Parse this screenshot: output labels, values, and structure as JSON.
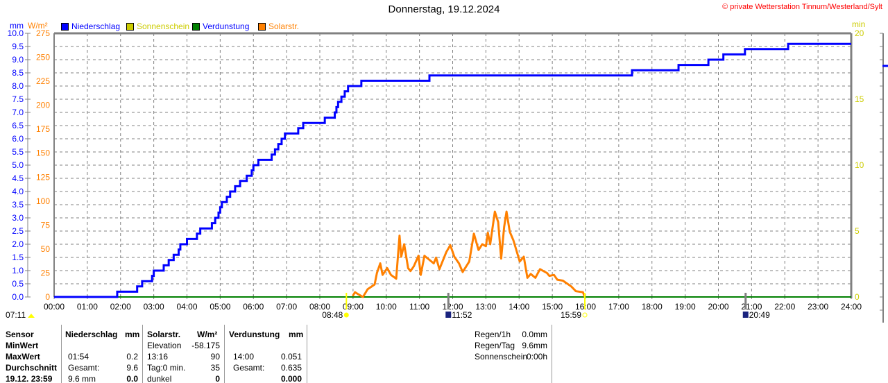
{
  "header": {
    "title": "Donnerstag, 19.12.2024",
    "copyright": "© private Wetterstation Tinnum/Westerland/Sylt"
  },
  "legend": [
    {
      "label": "Niederschlag",
      "color": "#0000ff",
      "text_color": "#0000ff"
    },
    {
      "label": "Sonnenschein",
      "color": "#cccc00",
      "text_color": "#cccc00"
    },
    {
      "label": "Verdunstung",
      "color": "#008000",
      "text_color": "#0000ff"
    },
    {
      "label": "Solarstr.",
      "color": "#ff8000",
      "text_color": "#ff8000"
    }
  ],
  "chart_data": {
    "type": "line",
    "title": "Donnerstag, 19.12.2024",
    "x_range_hours": [
      0,
      24
    ],
    "x_ticks": [
      "00:00",
      "01:00",
      "02:00",
      "03:00",
      "04:00",
      "05:00",
      "06:00",
      "07:00",
      "08:00",
      "09:00",
      "10:00",
      "11:00",
      "12:00",
      "13:00",
      "14:00",
      "15:00",
      "16:00",
      "17:00",
      "18:00",
      "19:00",
      "20:00",
      "21:00",
      "22:00",
      "23:00",
      "24:00"
    ],
    "y_left_mm": {
      "label": "mm",
      "range": [
        0,
        10
      ],
      "ticks": [
        "0.0",
        "0.5",
        "1.0",
        "1.5",
        "2.0",
        "2.5",
        "3.0",
        "3.5",
        "4.0",
        "4.5",
        "5.0",
        "5.5",
        "6.0",
        "6.5",
        "7.0",
        "7.5",
        "8.0",
        "8.5",
        "9.0",
        "9.5",
        "10.0"
      ]
    },
    "y_left_wm2": {
      "label": "W/m²",
      "range": [
        0,
        275
      ],
      "ticks": [
        "0",
        "25",
        "50",
        "75",
        "100",
        "125",
        "150",
        "175",
        "200",
        "225",
        "250",
        "275"
      ]
    },
    "y_right_min": {
      "label": "min",
      "range": [
        0,
        20
      ],
      "ticks": [
        "0",
        "5",
        "10",
        "15",
        "20"
      ]
    },
    "grid": true,
    "series": [
      {
        "name": "Niederschlag",
        "color": "#0000ff",
        "unit": "mm",
        "step": true,
        "points": [
          [
            0,
            0
          ],
          [
            1.9,
            0.2
          ],
          [
            2.5,
            0.4
          ],
          [
            2.65,
            0.6
          ],
          [
            2.95,
            0.8
          ],
          [
            3.0,
            1.0
          ],
          [
            3.3,
            1.2
          ],
          [
            3.45,
            1.4
          ],
          [
            3.6,
            1.6
          ],
          [
            3.75,
            1.8
          ],
          [
            3.8,
            2.0
          ],
          [
            4.0,
            2.2
          ],
          [
            4.3,
            2.4
          ],
          [
            4.4,
            2.6
          ],
          [
            4.75,
            2.8
          ],
          [
            4.85,
            3.0
          ],
          [
            4.95,
            3.2
          ],
          [
            5.0,
            3.4
          ],
          [
            5.05,
            3.6
          ],
          [
            5.2,
            3.8
          ],
          [
            5.3,
            4.0
          ],
          [
            5.45,
            4.2
          ],
          [
            5.6,
            4.4
          ],
          [
            5.8,
            4.6
          ],
          [
            5.95,
            4.8
          ],
          [
            6.0,
            5.0
          ],
          [
            6.15,
            5.2
          ],
          [
            6.55,
            5.4
          ],
          [
            6.65,
            5.6
          ],
          [
            6.75,
            5.8
          ],
          [
            6.85,
            6.0
          ],
          [
            6.95,
            6.2
          ],
          [
            7.35,
            6.4
          ],
          [
            7.5,
            6.6
          ],
          [
            8.15,
            6.8
          ],
          [
            8.45,
            7.0
          ],
          [
            8.5,
            7.2
          ],
          [
            8.55,
            7.4
          ],
          [
            8.65,
            7.6
          ],
          [
            8.75,
            7.8
          ],
          [
            8.85,
            8.0
          ],
          [
            9.25,
            8.2
          ],
          [
            11.3,
            8.4
          ],
          [
            17.4,
            8.6
          ],
          [
            18.8,
            8.8
          ],
          [
            19.7,
            9.0
          ],
          [
            20.15,
            9.2
          ],
          [
            20.8,
            9.4
          ],
          [
            22.1,
            9.6
          ],
          [
            24,
            9.6
          ]
        ]
      },
      {
        "name": "Solarstr.",
        "color": "#ff8000",
        "unit": "W/m²",
        "points": [
          [
            8.99,
            1
          ],
          [
            9.06,
            5
          ],
          [
            9.15,
            3
          ],
          [
            9.3,
            0
          ],
          [
            9.44,
            8
          ],
          [
            9.65,
            13
          ],
          [
            9.72,
            25
          ],
          [
            9.82,
            35
          ],
          [
            9.89,
            23
          ],
          [
            10.03,
            30
          ],
          [
            10.14,
            23
          ],
          [
            10.3,
            19
          ],
          [
            10.4,
            64
          ],
          [
            10.45,
            42
          ],
          [
            10.54,
            55
          ],
          [
            10.66,
            30
          ],
          [
            10.73,
            27
          ],
          [
            10.83,
            32
          ],
          [
            10.97,
            43
          ],
          [
            11.04,
            23
          ],
          [
            11.15,
            43
          ],
          [
            11.43,
            35
          ],
          [
            11.5,
            41
          ],
          [
            11.6,
            29
          ],
          [
            11.81,
            47
          ],
          [
            11.93,
            54
          ],
          [
            12.05,
            42
          ],
          [
            12.19,
            35
          ],
          [
            12.3,
            26
          ],
          [
            12.5,
            37
          ],
          [
            12.64,
            66
          ],
          [
            12.78,
            49
          ],
          [
            12.89,
            55
          ],
          [
            13.0,
            53
          ],
          [
            13.06,
            67
          ],
          [
            13.13,
            55
          ],
          [
            13.27,
            89
          ],
          [
            13.37,
            78
          ],
          [
            13.46,
            40
          ],
          [
            13.55,
            73
          ],
          [
            13.62,
            89
          ],
          [
            13.72,
            68
          ],
          [
            13.83,
            59
          ],
          [
            14.02,
            37
          ],
          [
            14.14,
            42
          ],
          [
            14.25,
            20
          ],
          [
            14.35,
            24
          ],
          [
            14.49,
            20
          ],
          [
            14.63,
            29
          ],
          [
            14.84,
            25
          ],
          [
            14.91,
            22
          ],
          [
            15.05,
            23
          ],
          [
            15.15,
            18
          ],
          [
            15.32,
            17
          ],
          [
            15.57,
            11
          ],
          [
            15.71,
            6
          ],
          [
            15.92,
            5
          ],
          [
            15.98,
            0
          ]
        ]
      },
      {
        "name": "Verdunstung",
        "color": "#008000",
        "unit": "mm",
        "points": [
          [
            0,
            0
          ],
          [
            24,
            0
          ]
        ]
      }
    ],
    "markers": [
      {
        "label": "07:11",
        "hour": 7.18,
        "type": "sunrise-left"
      },
      {
        "label": "08:48",
        "hour": 8.8,
        "type": "sunrise"
      },
      {
        "label": "11:52",
        "hour": 11.87,
        "type": "moon"
      },
      {
        "label": "15:59",
        "hour": 15.98,
        "type": "sunset"
      },
      {
        "label": "20:49",
        "hour": 20.82,
        "type": "moon"
      }
    ]
  },
  "table": {
    "headers": [
      "Sensor",
      "Niederschlag",
      "mm",
      "Solarstr.",
      "W/m²",
      "Verdunstung",
      "mm"
    ],
    "rows": [
      {
        "label": "MinWert",
        "n_time": "",
        "n_val": "",
        "s_time": "Elevation",
        "s_val": "-58.175",
        "v_time": "",
        "v_val": ""
      },
      {
        "label": "MaxWert",
        "n_time": "01:54",
        "n_val": "0.2",
        "s_time": "13:16",
        "s_val": "90",
        "v_time": "14:00",
        "v_val": "0.051"
      },
      {
        "label": "Durchschnitt",
        "n_time": "Gesamt:",
        "n_val": "9.6",
        "s_time": "Tag:0 min.",
        "s_val": "35",
        "v_time": "Gesamt:",
        "v_val": "0.635"
      },
      {
        "label": "19.12. 23:59",
        "n_time": "9.6 mm",
        "n_val": "0.0",
        "s_time": "dunkel",
        "s_val": "0",
        "v_time": "",
        "v_val": "0.000"
      }
    ]
  },
  "summary": [
    {
      "label": "Regen/1h",
      "value": "0.0mm"
    },
    {
      "label": "Regen/Tag",
      "value": "9.6mm"
    },
    {
      "label": "Sonnenschein",
      "value": "0:00h"
    }
  ]
}
